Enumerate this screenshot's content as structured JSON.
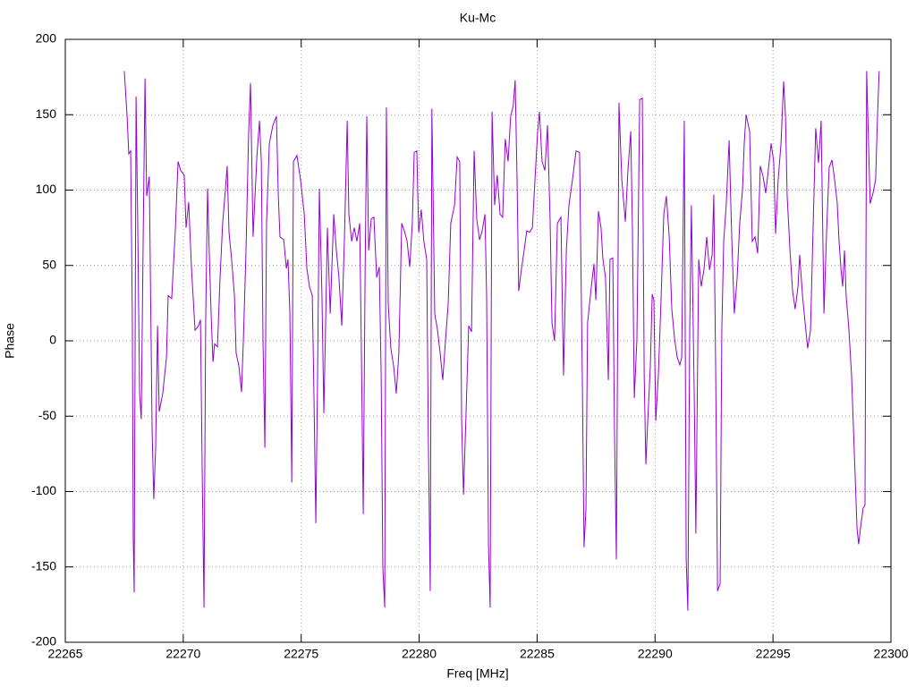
{
  "chart_data": {
    "type": "line",
    "title": "Ku-Mc",
    "x_label": "Freq [MHz]",
    "y_label": "Phase",
    "color": "#9400d3",
    "grid": true,
    "xlim": [
      22265,
      22300
    ],
    "xticks": [
      22265,
      22270,
      22275,
      22280,
      22285,
      22290,
      22295,
      22300
    ],
    "ylim": [
      -200,
      200
    ],
    "yticks": [
      -200,
      -150,
      -100,
      -50,
      0,
      50,
      100,
      150,
      200
    ],
    "x": [
      22267.5,
      22267.62,
      22267.69,
      22267.77,
      22267.84,
      22267.88,
      22267.92,
      22268.0,
      22268.07,
      22268.15,
      22268.22,
      22268.3,
      22268.38,
      22268.45,
      22268.56,
      22268.68,
      22268.75,
      22268.83,
      22268.91,
      22268.98,
      22269.13,
      22269.29,
      22269.36,
      22269.51,
      22269.66,
      22269.78,
      22269.89,
      22270.04,
      22270.12,
      22270.23,
      22270.35,
      22270.5,
      22270.65,
      22270.73,
      22270.8,
      22270.88,
      22270.95,
      22271.03,
      22271.1,
      22271.18,
      22271.26,
      22271.33,
      22271.45,
      22271.56,
      22271.67,
      22271.79,
      22271.86,
      22271.94,
      22272.05,
      22272.17,
      22272.24,
      22272.36,
      22272.47,
      22272.55,
      22272.66,
      22272.77,
      22272.85,
      22272.96,
      22273.12,
      22273.23,
      22273.31,
      22273.38,
      22273.46,
      22273.53,
      22273.65,
      22273.8,
      22273.95,
      22274.03,
      22274.1,
      22274.26,
      22274.37,
      22274.44,
      22274.52,
      22274.6,
      22274.67,
      22274.82,
      22274.97,
      22275.13,
      22275.24,
      22275.35,
      22275.47,
      22275.54,
      22275.62,
      22275.69,
      22275.77,
      22275.88,
      22275.96,
      22276.03,
      22276.11,
      22276.23,
      22276.38,
      22276.49,
      22276.6,
      22276.72,
      22276.83,
      22276.95,
      22277.02,
      22277.14,
      22277.25,
      22277.36,
      22277.48,
      22277.55,
      22277.63,
      22277.71,
      22277.78,
      22277.86,
      22277.97,
      22278.08,
      22278.2,
      22278.31,
      22278.39,
      22278.46,
      22278.54,
      22278.61,
      22278.69,
      22278.8,
      22278.92,
      22279.03,
      22279.14,
      22279.26,
      22279.37,
      22279.49,
      22279.6,
      22279.71,
      22279.79,
      22279.9,
      22279.98,
      22280.09,
      22280.2,
      22280.32,
      22280.39,
      22280.47,
      22280.54,
      22280.66,
      22280.77,
      22280.89,
      22281.0,
      22281.12,
      22281.23,
      22281.34,
      22281.5,
      22281.61,
      22281.72,
      22281.8,
      22281.88,
      22281.99,
      22282.1,
      22282.22,
      22282.33,
      22282.44,
      22282.56,
      22282.67,
      22282.79,
      22282.86,
      22282.94,
      22283.01,
      22283.09,
      22283.2,
      22283.31,
      22283.43,
      22283.54,
      22283.65,
      22283.77,
      22283.88,
      22283.99,
      22284.07,
      22284.15,
      22284.22,
      22284.34,
      22284.45,
      22284.56,
      22284.68,
      22284.8,
      22284.91,
      22285.02,
      22285.1,
      22285.21,
      22285.33,
      22285.44,
      22285.55,
      22285.63,
      22285.74,
      22285.86,
      22286.01,
      22286.12,
      22286.24,
      22286.35,
      22286.5,
      22286.65,
      22286.8,
      22286.92,
      22286.99,
      22287.07,
      22287.14,
      22287.3,
      22287.41,
      22287.49,
      22287.6,
      22287.71,
      22287.79,
      22287.9,
      22288.02,
      22288.09,
      22288.21,
      22288.28,
      22288.36,
      22288.47,
      22288.59,
      22288.74,
      22288.85,
      22288.97,
      22289.04,
      22289.12,
      22289.23,
      22289.35,
      22289.46,
      22289.54,
      22289.61,
      22289.69,
      22289.8,
      22289.88,
      22289.95,
      22290.03,
      22290.14,
      22290.26,
      22290.37,
      22290.48,
      22290.6,
      22290.71,
      22290.83,
      22290.94,
      22291.05,
      22291.13,
      22291.24,
      22291.32,
      22291.39,
      22291.47,
      22291.54,
      22291.66,
      22291.73,
      22291.85,
      22291.96,
      22292.08,
      22292.19,
      22292.31,
      22292.42,
      22292.49,
      22292.57,
      22292.65,
      22292.76,
      22292.83,
      22292.91,
      22293.02,
      22293.14,
      22293.25,
      22293.36,
      22293.48,
      22293.59,
      22293.71,
      22293.78,
      22293.86,
      22294.01,
      22294.12,
      22294.24,
      22294.35,
      22294.46,
      22294.58,
      22294.69,
      22294.8,
      22294.92,
      22295.03,
      22295.11,
      22295.22,
      22295.34,
      22295.45,
      22295.53,
      22295.6,
      22295.72,
      22295.83,
      22295.94,
      22296.06,
      22296.13,
      22296.25,
      22296.36,
      22296.47,
      22296.59,
      22296.7,
      22296.81,
      22296.93,
      22297.04,
      22297.16,
      22297.27,
      22297.38,
      22297.5,
      22297.61,
      22297.72,
      22297.8,
      22297.88,
      22297.95,
      22298.03,
      22298.1,
      22298.22,
      22298.33,
      22298.44,
      22298.56,
      22298.63,
      22298.71,
      22298.82,
      22298.9,
      22298.97,
      22299.05,
      22299.12,
      22299.24,
      22299.35,
      22299.43,
      22299.5
    ],
    "values": [
      179,
      149,
      124,
      126,
      18,
      -130,
      -167,
      162,
      78,
      -35,
      -52,
      66,
      174,
      96,
      109,
      -59,
      -105,
      -71,
      10,
      -47,
      -35,
      -11,
      30,
      28,
      72,
      119,
      113,
      110,
      75,
      92,
      48,
      7,
      10,
      14,
      -82,
      -177,
      13,
      101,
      60,
      18,
      -14,
      -2,
      -4,
      42,
      78,
      101,
      116,
      72,
      54,
      30,
      -8,
      -17,
      -34,
      1,
      60,
      137,
      171,
      69,
      122,
      146,
      119,
      1,
      -71,
      78,
      131,
      143,
      149,
      96,
      69,
      67,
      48,
      54,
      18,
      -94,
      119,
      123,
      107,
      84,
      48,
      36,
      30,
      -35,
      -121,
      -29,
      101,
      30,
      -48,
      7,
      75,
      18,
      84,
      60,
      42,
      10,
      66,
      146,
      84,
      66,
      75,
      66,
      78,
      -5,
      -115,
      48,
      149,
      60,
      81,
      82,
      42,
      49,
      -23,
      -150,
      -177,
      155,
      24,
      -5,
      -17,
      -35,
      -8,
      78,
      73,
      66,
      49,
      78,
      125,
      126,
      72,
      87,
      66,
      54,
      -65,
      -166,
      154,
      18,
      8,
      -8,
      -26,
      1,
      24,
      78,
      90,
      122,
      119,
      -53,
      -102,
      -47,
      10,
      6,
      126,
      81,
      67,
      73,
      84,
      30,
      -136,
      -177,
      152,
      90,
      110,
      84,
      82,
      134,
      119,
      149,
      156,
      173,
      107,
      33,
      48,
      60,
      73,
      72,
      75,
      107,
      138,
      152,
      119,
      113,
      143,
      81,
      12,
      0,
      78,
      82,
      -23,
      60,
      90,
      107,
      126,
      125,
      -29,
      -137,
      -112,
      12,
      36,
      51,
      27,
      86,
      75,
      54,
      42,
      -26,
      54,
      55,
      -59,
      -145,
      158,
      107,
      79,
      113,
      139,
      75,
      -38,
      1,
      160,
      161,
      -23,
      -82,
      -53,
      -17,
      31,
      27,
      -53,
      -23,
      30,
      84,
      96,
      69,
      21,
      1,
      -11,
      -16,
      -11,
      146,
      -145,
      -179,
      7,
      90,
      -35,
      -128,
      54,
      36,
      48,
      69,
      47,
      57,
      97,
      -20,
      -166,
      -161,
      7,
      66,
      91,
      133,
      69,
      18,
      42,
      78,
      101,
      131,
      150,
      139,
      66,
      69,
      58,
      116,
      109,
      98,
      113,
      131,
      119,
      71,
      107,
      131,
      172,
      149,
      96,
      60,
      33,
      21,
      36,
      57,
      30,
      12,
      -5,
      7,
      75,
      141,
      118,
      146,
      18,
      72,
      115,
      120,
      107,
      92,
      66,
      48,
      36,
      60,
      30,
      7,
      -23,
      -71,
      -124,
      -135,
      -124,
      -111,
      -109,
      179,
      131,
      91,
      98,
      107,
      149,
      179
    ]
  }
}
